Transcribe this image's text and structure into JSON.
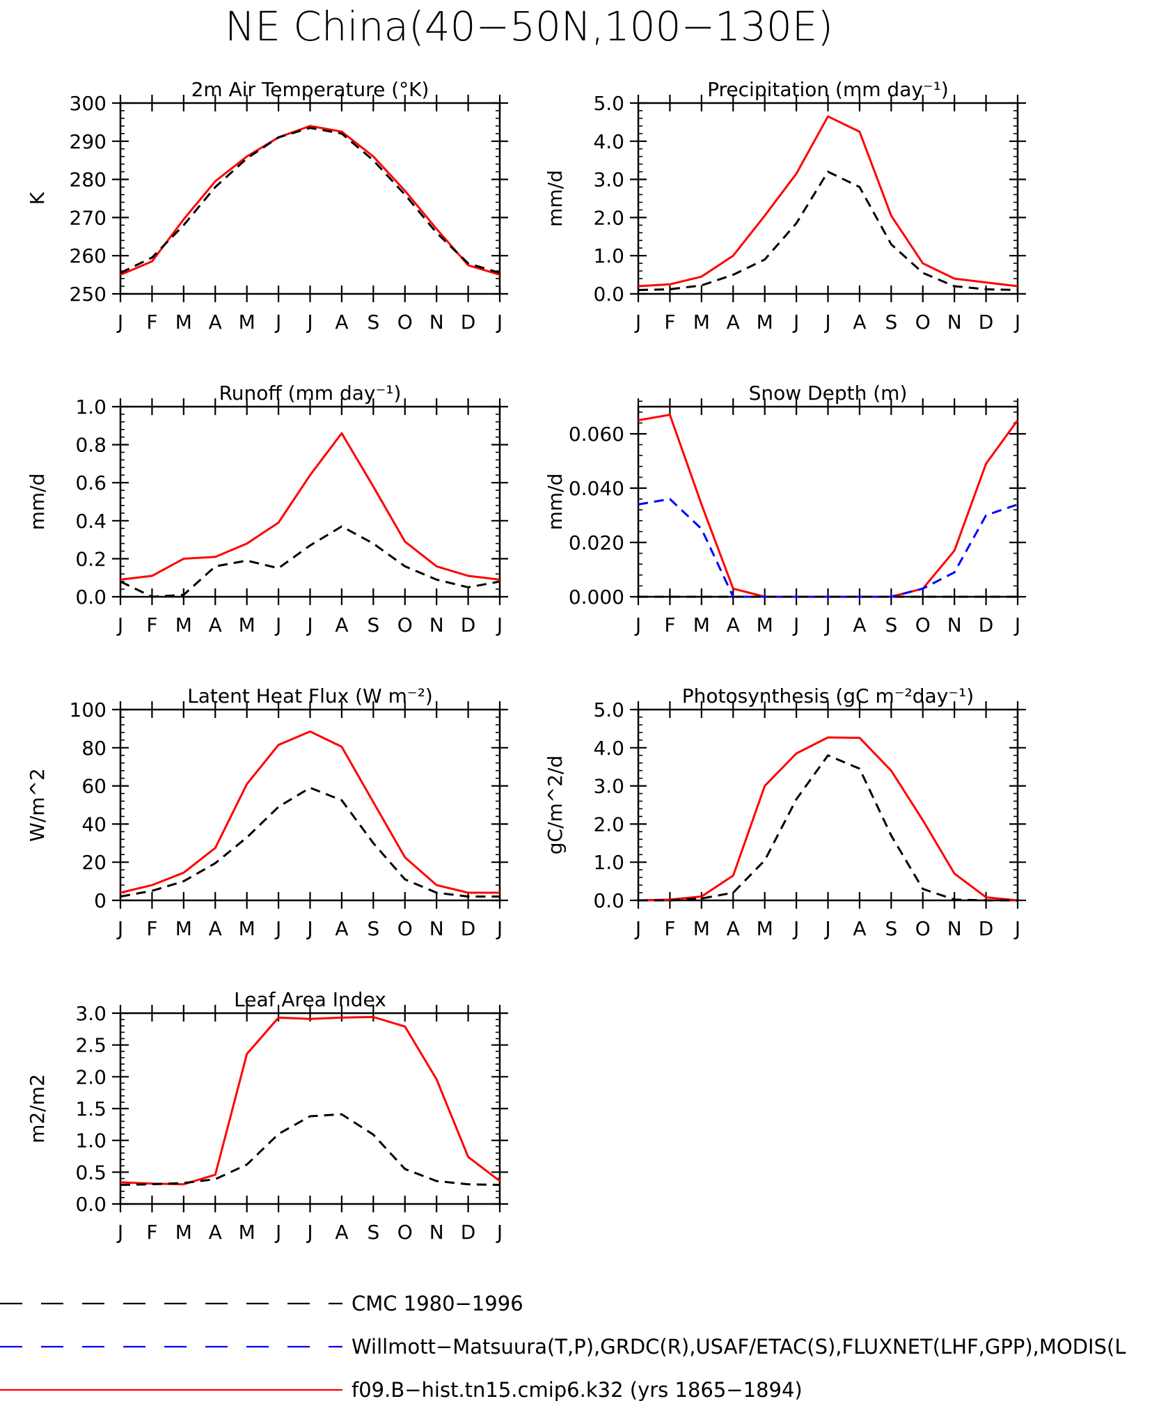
{
  "figure": {
    "title": "NE China(40−50N,100−130E)",
    "months": [
      "J",
      "F",
      "M",
      "A",
      "M",
      "J",
      "J",
      "A",
      "S",
      "O",
      "N",
      "D",
      "J"
    ]
  },
  "legend": [
    {
      "label": "CMC 1980−1996",
      "color": "#000000",
      "dash": "dashed"
    },
    {
      "label": "Willmott−Matsuura(T,P),GRDC(R),USAF/ETAC(S),FLUXNET(LHF,GPP),MODIS(L",
      "color": "#0000ff",
      "dash": "dashed"
    },
    {
      "label": "f09.B−hist.tn15.cmip6.k32 (yrs 1865−1894)",
      "color": "#ff0000",
      "dash": "solid"
    }
  ],
  "chart_data": [
    {
      "type": "line",
      "title": "2m Air Temperature (°K)",
      "ylabel": "K",
      "ylim": [
        250,
        300
      ],
      "yticks": [
        250,
        260,
        270,
        280,
        290,
        300
      ],
      "ytick_labels": [
        "250",
        "260",
        "270",
        "280",
        "290",
        "300"
      ],
      "minor_step": 2,
      "x": [
        "J",
        "F",
        "M",
        "A",
        "M",
        "J",
        "J",
        "A",
        "S",
        "O",
        "N",
        "D",
        "J"
      ],
      "series": [
        {
          "color": "#ff0000",
          "dash": "solid",
          "values": [
            255.0,
            258.5,
            269.5,
            279.5,
            286.0,
            291.0,
            294.0,
            292.5,
            286.0,
            277.0,
            267.0,
            257.5,
            255.0
          ]
        },
        {
          "color": "#000000",
          "dash": "dashed",
          "values": [
            255.5,
            259.5,
            268.0,
            278.0,
            285.5,
            291.0,
            293.5,
            292.0,
            285.0,
            276.0,
            266.0,
            258.0,
            255.5
          ]
        }
      ]
    },
    {
      "type": "line",
      "title": "Precipitation (mm day⁻¹)",
      "ylabel": "mm/d",
      "ylim": [
        0,
        5
      ],
      "yticks": [
        0,
        1,
        2,
        3,
        4,
        5
      ],
      "ytick_labels": [
        "0.0",
        "1.0",
        "2.0",
        "3.0",
        "4.0",
        "5.0"
      ],
      "minor_step": 0.2,
      "x": [
        "J",
        "F",
        "M",
        "A",
        "M",
        "J",
        "J",
        "A",
        "S",
        "O",
        "N",
        "D",
        "J"
      ],
      "series": [
        {
          "color": "#ff0000",
          "dash": "solid",
          "values": [
            0.2,
            0.25,
            0.45,
            1.0,
            2.05,
            3.15,
            4.65,
            4.25,
            2.05,
            0.8,
            0.4,
            0.3,
            0.2
          ]
        },
        {
          "color": "#000000",
          "dash": "dashed",
          "values": [
            0.1,
            0.12,
            0.22,
            0.5,
            0.9,
            1.85,
            3.2,
            2.8,
            1.3,
            0.55,
            0.2,
            0.12,
            0.1
          ]
        }
      ]
    },
    {
      "type": "line",
      "title": "Runoff (mm day⁻¹)",
      "ylabel": "mm/d",
      "ylim": [
        0,
        1
      ],
      "yticks": [
        0,
        0.2,
        0.4,
        0.6,
        0.8,
        1.0
      ],
      "ytick_labels": [
        "0.0",
        "0.2",
        "0.4",
        "0.6",
        "0.8",
        "1.0"
      ],
      "minor_step": 0.04,
      "x": [
        "J",
        "F",
        "M",
        "A",
        "M",
        "J",
        "J",
        "A",
        "S",
        "O",
        "N",
        "D",
        "J"
      ],
      "series": [
        {
          "color": "#ff0000",
          "dash": "solid",
          "values": [
            0.09,
            0.11,
            0.2,
            0.21,
            0.28,
            0.39,
            0.64,
            0.86,
            0.58,
            0.29,
            0.16,
            0.11,
            0.09
          ]
        },
        {
          "color": "#000000",
          "dash": "dashed",
          "values": [
            0.08,
            0.0,
            0.01,
            0.16,
            0.19,
            0.15,
            0.27,
            0.37,
            0.28,
            0.16,
            0.09,
            0.05,
            0.08
          ]
        }
      ]
    },
    {
      "type": "line",
      "title": "Snow Depth (m)",
      "ylabel": "mm/d",
      "ylim": [
        0,
        0.07
      ],
      "yticks": [
        0,
        0.02,
        0.04,
        0.06
      ],
      "ytick_labels": [
        "0.000",
        "0.020",
        "0.040",
        "0.060"
      ],
      "minor_step": 0.004,
      "x": [
        "J",
        "F",
        "M",
        "A",
        "M",
        "J",
        "J",
        "A",
        "S",
        "O",
        "N",
        "D",
        "J"
      ],
      "series": [
        {
          "color": "#ff0000",
          "dash": "solid",
          "values": [
            0.065,
            0.067,
            0.034,
            0.003,
            0.0,
            0.0,
            0.0,
            0.0,
            0.0,
            0.003,
            0.017,
            0.049,
            0.065
          ]
        },
        {
          "color": "#0000ff",
          "dash": "dashed",
          "values": [
            0.034,
            0.036,
            0.025,
            0.0,
            0.0,
            0.0,
            0.0,
            0.0,
            0.0,
            0.003,
            0.009,
            0.03,
            0.034
          ]
        },
        {
          "color": "#000000",
          "dash": "dashed",
          "values": [
            0,
            0,
            0,
            0,
            0,
            0,
            0,
            0,
            0,
            0,
            0,
            0,
            0
          ]
        }
      ]
    },
    {
      "type": "line",
      "title": "Latent Heat Flux (W m⁻²)",
      "ylabel": "W/m^2",
      "ylim": [
        0,
        100
      ],
      "yticks": [
        0,
        20,
        40,
        60,
        80,
        100
      ],
      "ytick_labels": [
        "0",
        "20",
        "40",
        "60",
        "80",
        "100"
      ],
      "minor_step": 4,
      "x": [
        "J",
        "F",
        "M",
        "A",
        "M",
        "J",
        "J",
        "A",
        "S",
        "O",
        "N",
        "D",
        "J"
      ],
      "series": [
        {
          "color": "#ff0000",
          "dash": "solid",
          "values": [
            4.0,
            8.0,
            14.5,
            27.5,
            61.0,
            81.5,
            88.5,
            80.5,
            51.5,
            22.5,
            8.0,
            4.0,
            4.0
          ]
        },
        {
          "color": "#000000",
          "dash": "dashed",
          "values": [
            2.0,
            5.0,
            10.0,
            19.5,
            33.0,
            49.0,
            59.0,
            52.5,
            30.0,
            11.0,
            4.0,
            2.0,
            2.0
          ]
        }
      ]
    },
    {
      "type": "line",
      "title": "Photosynthesis (gC m⁻²day⁻¹)",
      "ylabel": "gC/m^2/d",
      "ylim": [
        0,
        5
      ],
      "yticks": [
        0,
        1,
        2,
        3,
        4,
        5
      ],
      "ytick_labels": [
        "0.0",
        "1.0",
        "2.0",
        "3.0",
        "4.0",
        "5.0"
      ],
      "minor_step": 0.2,
      "x": [
        "J",
        "F",
        "M",
        "A",
        "M",
        "J",
        "J",
        "A",
        "S",
        "O",
        "N",
        "D",
        "J"
      ],
      "series": [
        {
          "color": "#ff0000",
          "dash": "solid",
          "values": [
            0.0,
            0.02,
            0.1,
            0.65,
            3.0,
            3.85,
            4.27,
            4.26,
            3.4,
            2.1,
            0.7,
            0.08,
            0.0
          ]
        },
        {
          "color": "#000000",
          "dash": "dashed",
          "values": [
            0.0,
            0.0,
            0.05,
            0.2,
            1.05,
            2.65,
            3.8,
            3.45,
            1.7,
            0.3,
            0.02,
            0.0,
            0.0
          ]
        }
      ]
    },
    {
      "type": "line",
      "title": "Leaf Area Index",
      "ylabel": "m2/m2",
      "ylim": [
        0,
        3
      ],
      "yticks": [
        0,
        0.5,
        1.0,
        1.5,
        2.0,
        2.5,
        3.0
      ],
      "ytick_labels": [
        "0.0",
        "0.5",
        "1.0",
        "1.5",
        "2.0",
        "2.5",
        "3.0"
      ],
      "minor_step": 0.1,
      "x": [
        "J",
        "F",
        "M",
        "A",
        "M",
        "J",
        "J",
        "A",
        "S",
        "O",
        "N",
        "D",
        "J"
      ],
      "series": [
        {
          "color": "#ff0000",
          "dash": "solid",
          "values": [
            0.34,
            0.32,
            0.31,
            0.46,
            2.36,
            2.93,
            2.91,
            2.93,
            2.94,
            2.79,
            1.96,
            0.74,
            0.36
          ]
        },
        {
          "color": "#000000",
          "dash": "dashed",
          "values": [
            0.3,
            0.31,
            0.33,
            0.39,
            0.62,
            1.1,
            1.38,
            1.41,
            1.09,
            0.55,
            0.36,
            0.31,
            0.3
          ]
        }
      ]
    }
  ]
}
